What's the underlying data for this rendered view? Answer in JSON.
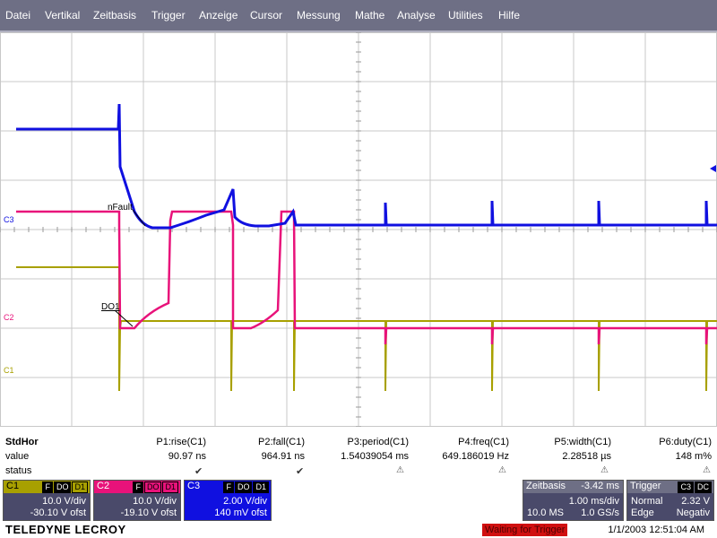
{
  "menu": [
    "Datei",
    "Vertikal",
    "Zeitbasis",
    "Trigger",
    "Anzeige",
    "Cursor",
    "Messung",
    "Mathe",
    "Analyse",
    "Utilities",
    "Hilfe"
  ],
  "colors": {
    "c1": "#a8a000",
    "c2": "#e8127a",
    "c3": "#1010e0",
    "menubar": "#6e6f85",
    "grid": "#c8c8c8"
  },
  "channel_labels": {
    "c1": "C1",
    "c2": "C2",
    "c3": "C3"
  },
  "annotations": {
    "nfault": "nFault",
    "do1": "DO1"
  },
  "measurements": {
    "row_labels": {
      "header": "StdHor",
      "value": "value",
      "status": "status"
    },
    "params": [
      {
        "name": "P1:rise(C1)",
        "value": "90.97 ns",
        "status": "check"
      },
      {
        "name": "P2:fall(C1)",
        "value": "964.91 ns",
        "status": "check"
      },
      {
        "name": "P3:period(C1)",
        "value": "1.54039054 ms",
        "status": "warning"
      },
      {
        "name": "P4:freq(C1)",
        "value": "649.186019 Hz",
        "status": "warning"
      },
      {
        "name": "P5:width(C1)",
        "value": "2.28518 µs",
        "status": "warning"
      },
      {
        "name": "P6:duty(C1)",
        "value": "148 m%",
        "status": "warning"
      }
    ]
  },
  "channels": [
    {
      "label": "C1",
      "tags": [
        "F",
        "DO",
        "D1"
      ],
      "vdiv": "10.0 V/div",
      "ofst": "-30.10 V ofst"
    },
    {
      "label": "C2",
      "tags": [
        "F",
        "DO",
        "D1"
      ],
      "vdiv": "10.0 V/div",
      "ofst": "-19.10 V ofst"
    },
    {
      "label": "C3",
      "tags": [
        "F",
        "DO",
        "D1"
      ],
      "vdiv": "2.00 V/div",
      "ofst": "140 mV ofst"
    }
  ],
  "timebase": {
    "title": "Zeitbasis",
    "delay": "-3.42 ms",
    "tdiv": "1.00 ms/div",
    "samples": "10.0 MS",
    "rate": "1.0 GS/s"
  },
  "trigger": {
    "title": "Trigger",
    "tags": [
      "C3",
      "DC"
    ],
    "mode": "Normal",
    "level": "2.32 V",
    "type": "Edge",
    "slope": "Negativ"
  },
  "footer": {
    "brand": "TELEDYNE LECROY",
    "status": "Waiting for Trigger",
    "datetime": "1/1/2003 12:51:04 AM"
  }
}
